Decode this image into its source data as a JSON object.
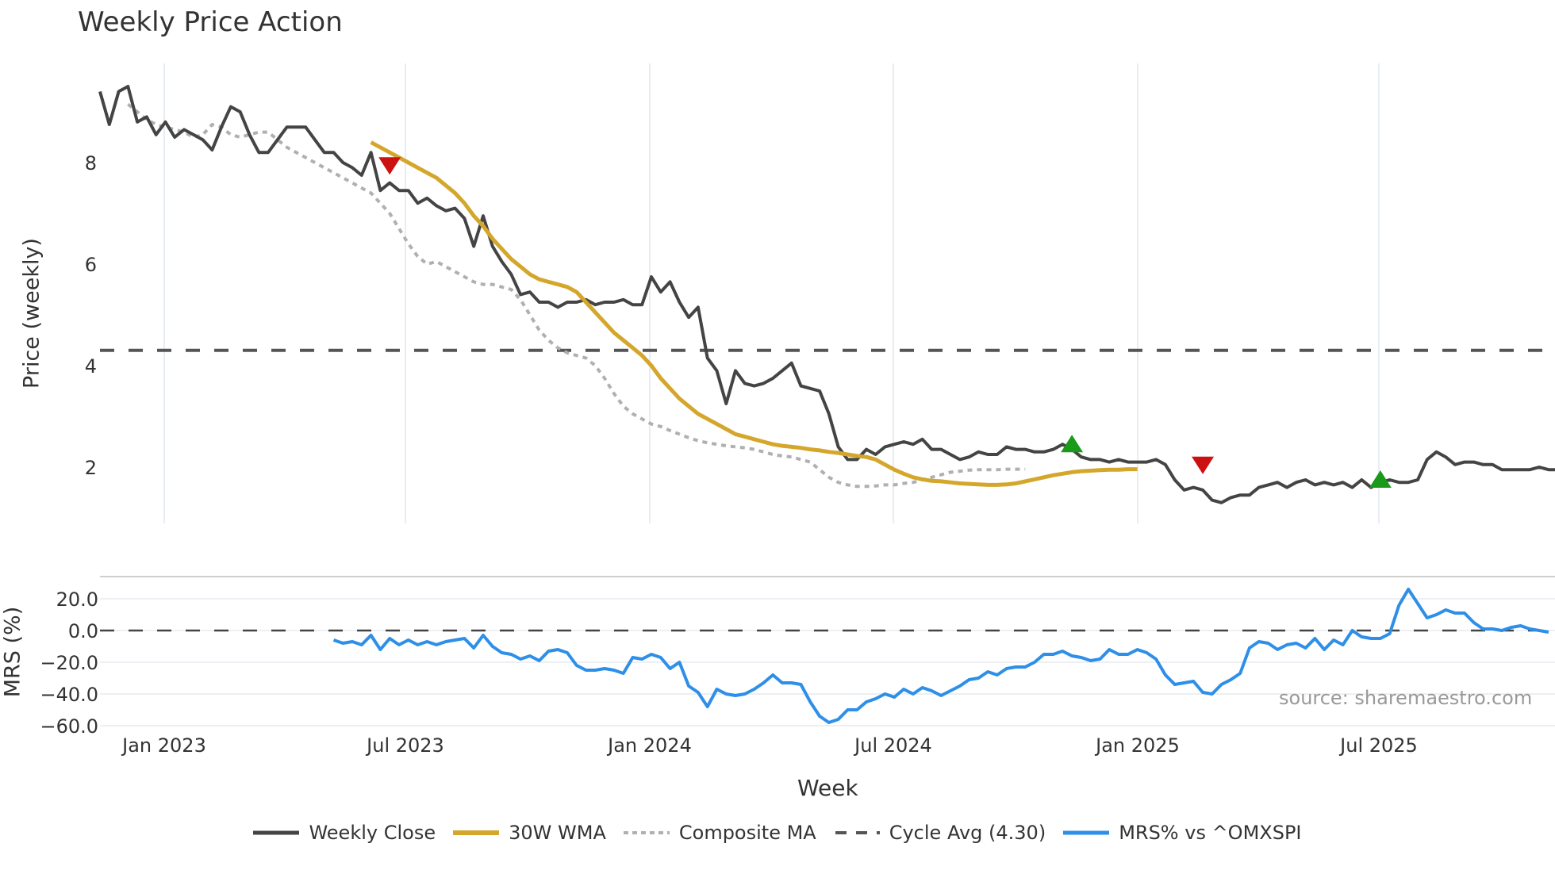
{
  "title": "Weekly Price Action",
  "source_note": "source: sharemaestro.com",
  "x_axis_label": "Week",
  "price_axis_label": "Price (weekly)",
  "mrs_axis_label": "MRS (%)",
  "legend": [
    {
      "label": "Weekly Close",
      "color": "#444444",
      "style": "solid"
    },
    {
      "label": "30W WMA",
      "color": "#D4A72C",
      "style": "solid"
    },
    {
      "label": "Composite MA",
      "color": "#B0B0B0",
      "style": "dotted"
    },
    {
      "label": "Cycle Avg (4.30)",
      "color": "#555555",
      "style": "dashed"
    },
    {
      "label": "MRS% vs ^OMXSPI",
      "color": "#2E8FE8",
      "style": "solid"
    }
  ],
  "chart_data": [
    {
      "type": "line",
      "title": "Weekly Price Action",
      "xlabel": "Week",
      "ylabel": "Price (weekly)",
      "x_ticks": [
        "Jan 2023",
        "Jul 2023",
        "Jan 2024",
        "Jul 2024",
        "Jan 2025",
        "Jul 2025"
      ],
      "y_ticks": [
        2,
        4,
        6,
        8
      ],
      "ylim": [
        0.9,
        9.9
      ],
      "grid": true,
      "cycle_avg": 4.3,
      "series": [
        {
          "name": "Weekly Close",
          "color": "#444444",
          "values": [
            9.4,
            8.75,
            9.4,
            9.5,
            8.8,
            8.9,
            8.55,
            8.8,
            8.5,
            8.65,
            8.55,
            8.45,
            8.25,
            8.7,
            9.1,
            9.0,
            8.55,
            8.2,
            8.2,
            8.45,
            8.7,
            8.7,
            8.7,
            8.45,
            8.2,
            8.2,
            8.0,
            7.9,
            7.75,
            8.2,
            7.45,
            7.6,
            7.45,
            7.45,
            7.2,
            7.3,
            7.15,
            7.05,
            7.1,
            6.9,
            6.35,
            6.95,
            6.35,
            6.05,
            5.8,
            5.4,
            5.45,
            5.25,
            5.25,
            5.15,
            5.25,
            5.25,
            5.3,
            5.2,
            5.25,
            5.25,
            5.3,
            5.2,
            5.2,
            5.75,
            5.45,
            5.65,
            5.25,
            4.95,
            5.15,
            4.15,
            3.9,
            3.25,
            3.9,
            3.65,
            3.6,
            3.65,
            3.75,
            3.9,
            4.05,
            3.6,
            3.55,
            3.5,
            3.05,
            2.4,
            2.15,
            2.15,
            2.35,
            2.25,
            2.4,
            2.45,
            2.5,
            2.45,
            2.55,
            2.35,
            2.35,
            2.25,
            2.15,
            2.2,
            2.3,
            2.25,
            2.25,
            2.4,
            2.35,
            2.35,
            2.3,
            2.3,
            2.35,
            2.45,
            2.35,
            2.2,
            2.15,
            2.15,
            2.1,
            2.15,
            2.1,
            2.1,
            2.1,
            2.15,
            2.05,
            1.75,
            1.55,
            1.6,
            1.55,
            1.35,
            1.3,
            1.4,
            1.45,
            1.45,
            1.6,
            1.65,
            1.7,
            1.6,
            1.7,
            1.75,
            1.65,
            1.7,
            1.65,
            1.7,
            1.6,
            1.75,
            1.6,
            1.7,
            1.75,
            1.7,
            1.7,
            1.75,
            2.15,
            2.3,
            2.2,
            2.05,
            2.1,
            2.1,
            2.05,
            2.05,
            1.95,
            1.95,
            1.95,
            1.95,
            2.0,
            1.95,
            1.95
          ]
        },
        {
          "name": "30W WMA",
          "color": "#D4A72C",
          "start_index": 29,
          "values": [
            8.4,
            8.3,
            8.2,
            8.1,
            8.0,
            7.9,
            7.8,
            7.7,
            7.55,
            7.4,
            7.2,
            6.95,
            6.75,
            6.5,
            6.3,
            6.1,
            5.95,
            5.8,
            5.7,
            5.65,
            5.6,
            5.55,
            5.45,
            5.25,
            5.05,
            4.85,
            4.65,
            4.5,
            4.35,
            4.2,
            4.0,
            3.75,
            3.55,
            3.35,
            3.2,
            3.05,
            2.95,
            2.85,
            2.75,
            2.65,
            2.6,
            2.55,
            2.5,
            2.45,
            2.42,
            2.4,
            2.38,
            2.35,
            2.33,
            2.3,
            2.28,
            2.25,
            2.22,
            2.2,
            2.15,
            2.05,
            1.95,
            1.87,
            1.8,
            1.76,
            1.73,
            1.72,
            1.7,
            1.68,
            1.67,
            1.66,
            1.65,
            1.65,
            1.66,
            1.68,
            1.72,
            1.76,
            1.8,
            1.84,
            1.87,
            1.9,
            1.92,
            1.93,
            1.94,
            1.95,
            1.95,
            1.96,
            1.96
          ]
        },
        {
          "name": "Composite MA",
          "color": "#B0B0B0",
          "start_index": 3,
          "values": [
            9.15,
            9.0,
            8.85,
            8.75,
            8.7,
            8.65,
            8.6,
            8.5,
            8.55,
            8.75,
            8.7,
            8.55,
            8.5,
            8.55,
            8.6,
            8.6,
            8.45,
            8.3,
            8.2,
            8.1,
            8.0,
            7.9,
            7.8,
            7.7,
            7.6,
            7.5,
            7.4,
            7.2,
            7.0,
            6.7,
            6.4,
            6.15,
            6.0,
            6.05,
            5.95,
            5.85,
            5.75,
            5.65,
            5.6,
            5.6,
            5.55,
            5.5,
            5.3,
            5.0,
            4.7,
            4.5,
            4.35,
            4.25,
            4.2,
            4.15,
            4.0,
            3.75,
            3.45,
            3.2,
            3.05,
            2.95,
            2.85,
            2.8,
            2.72,
            2.65,
            2.58,
            2.52,
            2.48,
            2.45,
            2.42,
            2.4,
            2.38,
            2.35,
            2.3,
            2.25,
            2.22,
            2.2,
            2.15,
            2.1,
            1.95,
            1.8,
            1.7,
            1.65,
            1.62,
            1.62,
            1.63,
            1.65,
            1.65,
            1.68,
            1.7,
            1.75,
            1.8,
            1.85,
            1.9,
            1.92,
            1.94,
            1.95,
            1.95,
            1.95,
            1.96,
            1.96,
            1.96
          ]
        },
        {
          "name": "Cycle Avg (4.30)",
          "color": "#555555",
          "constant": 4.3
        }
      ],
      "markers": [
        {
          "type": "sell",
          "shape": "triangle-down",
          "color": "#CC1111",
          "x_index": 31,
          "value": 7.95
        },
        {
          "type": "buy",
          "shape": "triangle-up",
          "color": "#1A9A1A",
          "x_index": 104,
          "value": 2.45
        },
        {
          "type": "sell",
          "shape": "triangle-down",
          "color": "#CC1111",
          "x_index": 118,
          "value": 2.05
        },
        {
          "type": "buy",
          "shape": "triangle-up",
          "color": "#1A9A1A",
          "x_index": 137,
          "value": 1.75
        }
      ]
    },
    {
      "type": "line",
      "ylabel": "MRS (%)",
      "y_ticks": [
        20.0,
        0.0,
        -20.0,
        -40.0,
        -60.0
      ],
      "ylim": [
        -62,
        33
      ],
      "reference_line": 0.0,
      "series": [
        {
          "name": "MRS% vs ^OMXSPI",
          "color": "#2E8FE8",
          "start_index": 25,
          "values": [
            -6,
            -8,
            -7,
            -9,
            -3,
            -12,
            -5,
            -9,
            -6,
            -9,
            -7,
            -9,
            -7,
            -6,
            -5,
            -11,
            -3,
            -10,
            -14,
            -15,
            -18,
            -16,
            -19,
            -13,
            -12,
            -14,
            -22,
            -25,
            -25,
            -24,
            -25,
            -27,
            -17,
            -18,
            -15,
            -17,
            -24,
            -20,
            -35,
            -39,
            -48,
            -37,
            -40,
            -41,
            -40,
            -37,
            -33,
            -28,
            -33,
            -33,
            -34,
            -45,
            -54,
            -58,
            -56,
            -50,
            -50,
            -45,
            -43,
            -40,
            -42,
            -37,
            -40,
            -36,
            -38,
            -41,
            -38,
            -35,
            -31,
            -30,
            -26,
            -28,
            -24,
            -23,
            -23,
            -20,
            -15,
            -15,
            -13,
            -16,
            -17,
            -19,
            -18,
            -12,
            -15,
            -15,
            -12,
            -14,
            -18,
            -28,
            -34,
            -33,
            -32,
            -39,
            -40,
            -34,
            -31,
            -27,
            -11,
            -7,
            -8,
            -12,
            -9,
            -8,
            -11,
            -5,
            -12,
            -6,
            -9,
            0,
            -4,
            -5,
            -5,
            -2,
            16,
            26,
            17,
            8,
            10,
            13,
            11,
            11,
            5,
            1,
            1,
            0,
            2,
            3,
            1,
            0,
            -1
          ]
        }
      ]
    }
  ]
}
